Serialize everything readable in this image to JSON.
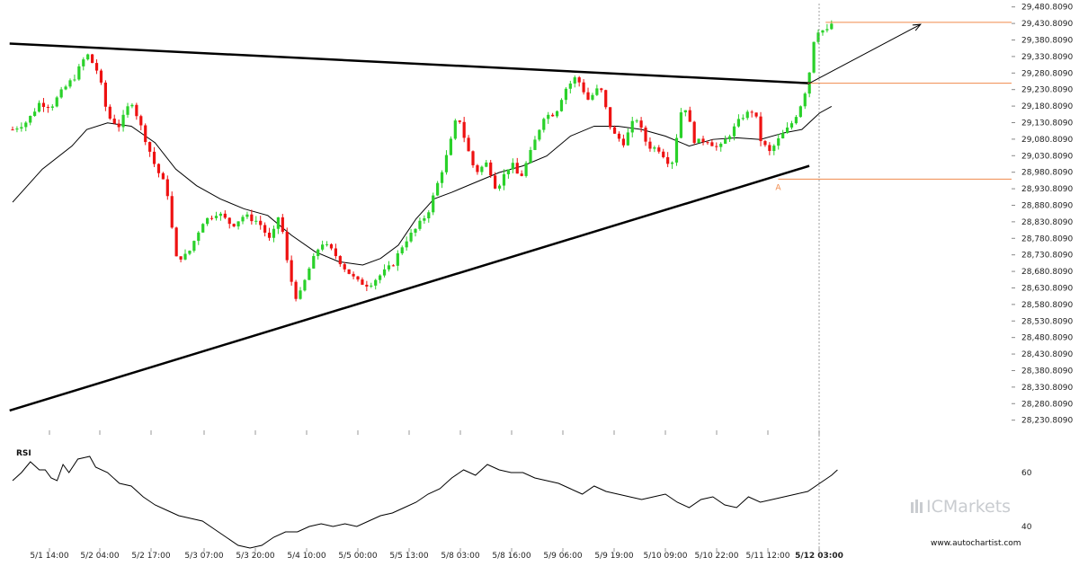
{
  "brand": "ICMarkets",
  "website": "www.autochartist.com",
  "colors": {
    "up": "#2ad12a",
    "down": "#ee1111",
    "trend": "#000000",
    "level": "#f08a4b",
    "ma": "#000000",
    "rsi": "#000000",
    "grid": "#dddddd"
  },
  "chart_data": {
    "type": "candlestick",
    "y_axis": {
      "range": [
        28200,
        29480
      ],
      "ticks": [
        "29,480.8090",
        "29,430.8090",
        "29,380.8090",
        "29,330.8090",
        "29,280.8090",
        "29,230.8090",
        "29,180.8090",
        "29,130.8090",
        "29,080.8090",
        "29,030.8090",
        "28,980.8090",
        "28,930.8090",
        "28,880.8090",
        "28,830.8090",
        "28,780.8090",
        "28,730.8090",
        "28,680.8090",
        "28,630.8090",
        "28,580.8090",
        "28,530.8090",
        "28,480.8090",
        "28,430.8090",
        "28,380.8090",
        "28,330.8090",
        "28,280.8090",
        "28,230.8090"
      ]
    },
    "x_axis": {
      "ticks": [
        "5/1 14:00",
        "5/2 04:00",
        "5/2 17:00",
        "5/3 07:00",
        "5/3 20:00",
        "5/4 10:00",
        "5/5 00:00",
        "5/5 13:00",
        "5/8 03:00",
        "5/8 16:00",
        "5/9 06:00",
        "5/9 19:00",
        "5/10 09:00",
        "5/10 22:00",
        "5/11 12:00",
        "5/12 03:00"
      ],
      "highlight": "5/12 03:00"
    },
    "candle_count": 186,
    "price_path": [
      [
        0,
        29110
      ],
      [
        5,
        29135
      ],
      [
        9,
        29190
      ],
      [
        13,
        29180
      ],
      [
        17,
        29230
      ],
      [
        21,
        29270
      ],
      [
        25,
        29340
      ],
      [
        29,
        29280
      ],
      [
        32,
        29150
      ],
      [
        36,
        29120
      ],
      [
        40,
        29200
      ],
      [
        44,
        29100
      ],
      [
        48,
        29000
      ],
      [
        52,
        28930
      ],
      [
        55,
        28720
      ],
      [
        59,
        28730
      ],
      [
        64,
        28830
      ],
      [
        69,
        28860
      ],
      [
        74,
        28820
      ],
      [
        78,
        28850
      ],
      [
        83,
        28830
      ],
      [
        87,
        28770
      ],
      [
        90,
        28860
      ],
      [
        93,
        28680
      ],
      [
        96,
        28590
      ],
      [
        100,
        28690
      ],
      [
        104,
        28770
      ],
      [
        108,
        28740
      ],
      [
        112,
        28690
      ],
      [
        116,
        28650
      ],
      [
        120,
        28640
      ],
      [
        124,
        28670
      ],
      [
        128,
        28700
      ],
      [
        132,
        28770
      ],
      [
        136,
        28810
      ],
      [
        140,
        28860
      ],
      [
        143,
        28940
      ],
      [
        147,
        29050
      ],
      [
        150,
        29160
      ],
      [
        153,
        29060
      ],
      [
        156,
        28980
      ],
      [
        160,
        29010
      ],
      [
        163,
        28930
      ],
      [
        168,
        29010
      ],
      [
        171,
        28960
      ],
      [
        175,
        29050
      ],
      [
        179,
        29150
      ],
      [
        183,
        29160
      ],
      [
        186,
        29230
      ],
      [
        190,
        29270
      ],
      [
        194,
        29200
      ],
      [
        198,
        29240
      ],
      [
        202,
        29100
      ],
      [
        206,
        29070
      ],
      [
        210,
        29150
      ],
      [
        214,
        29060
      ],
      [
        218,
        29050
      ],
      [
        222,
        29000
      ],
      [
        226,
        29200
      ],
      [
        230,
        29070
      ],
      [
        234,
        29080
      ],
      [
        238,
        29050
      ],
      [
        242,
        29100
      ],
      [
        246,
        29150
      ],
      [
        250,
        29170
      ],
      [
        252,
        29080
      ],
      [
        255,
        29040
      ],
      [
        259,
        29090
      ],
      [
        262,
        29120
      ],
      [
        265,
        29170
      ],
      [
        268,
        29250
      ],
      [
        270,
        29380
      ],
      [
        272,
        29420
      ],
      [
        274,
        29400
      ],
      [
        276,
        29430
      ]
    ],
    "trendlines": [
      {
        "role": "resistance",
        "from": [
          -1,
          29370
        ],
        "to": [
          268.5,
          29250
        ]
      },
      {
        "role": "support",
        "from": [
          -1,
          28260
        ],
        "to": [
          268.5,
          29000
        ]
      }
    ],
    "levels": [
      {
        "value": 29434,
        "from_x": 274
      },
      {
        "value": 29250,
        "from_x": 268
      },
      {
        "value": 28960,
        "from_x": 258
      }
    ],
    "points": [
      {
        "label": "A",
        "x": 258,
        "value": 28960
      }
    ],
    "projection": {
      "from": [
        268.5,
        29250
      ],
      "to": [
        306,
        29428
      ]
    },
    "moving_average": [
      [
        0,
        28890
      ],
      [
        10,
        28990
      ],
      [
        20,
        29060
      ],
      [
        25,
        29110
      ],
      [
        32,
        29130
      ],
      [
        40,
        29120
      ],
      [
        48,
        29070
      ],
      [
        55,
        28990
      ],
      [
        62,
        28940
      ],
      [
        70,
        28900
      ],
      [
        78,
        28870
      ],
      [
        86,
        28850
      ],
      [
        94,
        28790
      ],
      [
        102,
        28740
      ],
      [
        110,
        28710
      ],
      [
        118,
        28700
      ],
      [
        124,
        28720
      ],
      [
        130,
        28760
      ],
      [
        136,
        28840
      ],
      [
        142,
        28900
      ],
      [
        148,
        28920
      ],
      [
        156,
        28950
      ],
      [
        164,
        28980
      ],
      [
        172,
        29000
      ],
      [
        180,
        29030
      ],
      [
        188,
        29090
      ],
      [
        196,
        29120
      ],
      [
        204,
        29120
      ],
      [
        212,
        29110
      ],
      [
        220,
        29090
      ],
      [
        228,
        29060
      ],
      [
        236,
        29080
      ],
      [
        244,
        29085
      ],
      [
        252,
        29080
      ],
      [
        260,
        29100
      ],
      [
        266,
        29110
      ],
      [
        272,
        29160
      ],
      [
        276,
        29180
      ]
    ],
    "rsi": {
      "label": "RSI",
      "levels": [
        "60",
        "40"
      ],
      "range": [
        32,
        72
      ],
      "path": [
        [
          0,
          57
        ],
        [
          3,
          60
        ],
        [
          6,
          64
        ],
        [
          9,
          61
        ],
        [
          11,
          61
        ],
        [
          13,
          58
        ],
        [
          15,
          57
        ],
        [
          17,
          63
        ],
        [
          19,
          60
        ],
        [
          22,
          65
        ],
        [
          26,
          66
        ],
        [
          28,
          62
        ],
        [
          32,
          60
        ],
        [
          36,
          56
        ],
        [
          40,
          55
        ],
        [
          44,
          51
        ],
        [
          48,
          48
        ],
        [
          52,
          46
        ],
        [
          56,
          44
        ],
        [
          60,
          43
        ],
        [
          64,
          42
        ],
        [
          68,
          39
        ],
        [
          72,
          36
        ],
        [
          76,
          33
        ],
        [
          80,
          32
        ],
        [
          84,
          33
        ],
        [
          88,
          36
        ],
        [
          92,
          38
        ],
        [
          96,
          38
        ],
        [
          100,
          40
        ],
        [
          104,
          41
        ],
        [
          108,
          40
        ],
        [
          112,
          41
        ],
        [
          116,
          40
        ],
        [
          120,
          42
        ],
        [
          124,
          44
        ],
        [
          128,
          45
        ],
        [
          132,
          47
        ],
        [
          136,
          49
        ],
        [
          140,
          52
        ],
        [
          144,
          54
        ],
        [
          148,
          58
        ],
        [
          152,
          61
        ],
        [
          156,
          59
        ],
        [
          160,
          63
        ],
        [
          164,
          61
        ],
        [
          168,
          60
        ],
        [
          172,
          60
        ],
        [
          176,
          58
        ],
        [
          180,
          57
        ],
        [
          184,
          56
        ],
        [
          188,
          54
        ],
        [
          192,
          52
        ],
        [
          196,
          55
        ],
        [
          200,
          53
        ],
        [
          204,
          52
        ],
        [
          208,
          51
        ],
        [
          212,
          50
        ],
        [
          216,
          51
        ],
        [
          220,
          52
        ],
        [
          224,
          49
        ],
        [
          228,
          47
        ],
        [
          232,
          50
        ],
        [
          236,
          51
        ],
        [
          240,
          48
        ],
        [
          244,
          47
        ],
        [
          248,
          51
        ],
        [
          252,
          49
        ],
        [
          256,
          50
        ],
        [
          260,
          51
        ],
        [
          264,
          52
        ],
        [
          268,
          53
        ],
        [
          272,
          56
        ],
        [
          276,
          59
        ],
        [
          278,
          61
        ]
      ]
    }
  }
}
